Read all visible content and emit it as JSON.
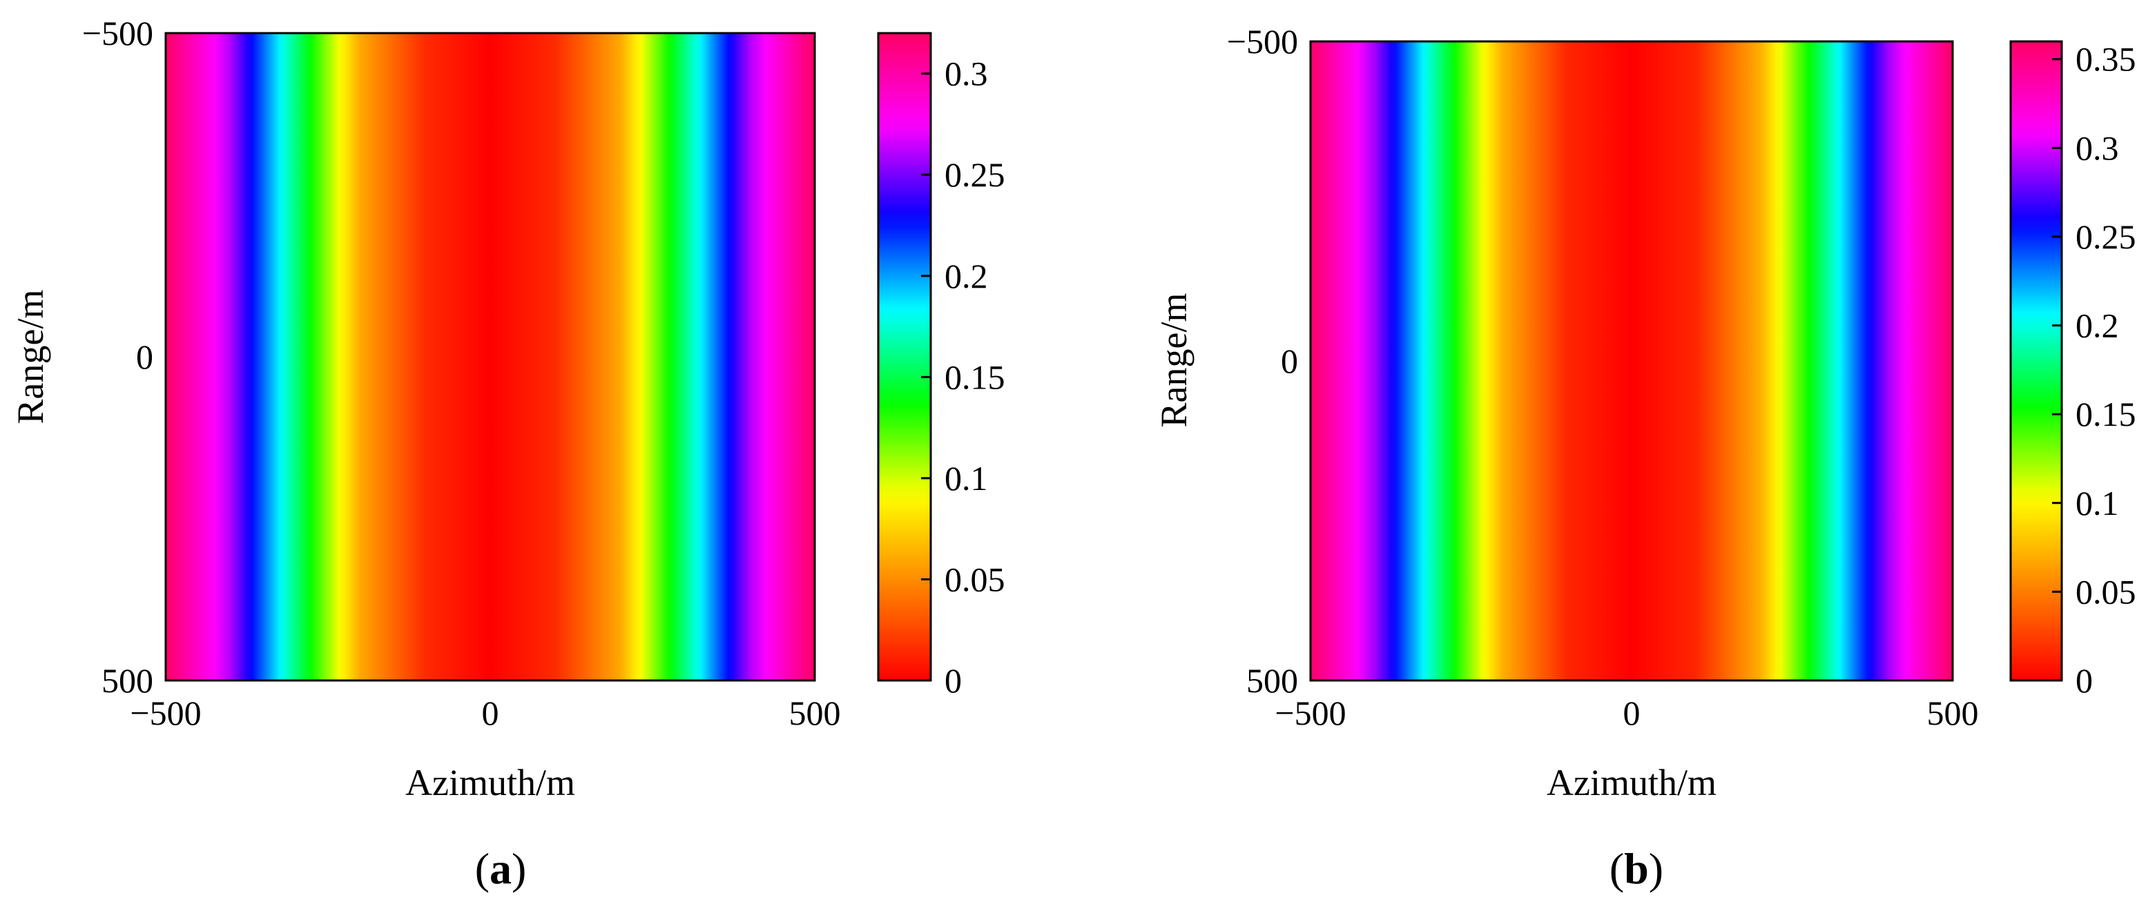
{
  "colors": {
    "colormap": [
      "#ff0000",
      "#ff8000",
      "#ffff00",
      "#00ff00",
      "#00ffff",
      "#0000ff",
      "#ff00ff",
      "#ff0066"
    ]
  },
  "chart_data": [
    {
      "panel": "a",
      "type": "heatmap",
      "subfigure_label": [
        "(",
        "a",
        ")"
      ],
      "xlabel": "Azimuth/m",
      "ylabel": "Range/m",
      "xlim": [
        -500,
        500
      ],
      "ylim": [
        -500,
        500
      ],
      "x_ticks": [
        "−500",
        "0",
        "500"
      ],
      "y_ticks": [
        "−500",
        "0",
        "500"
      ],
      "colorbar": {
        "range": [
          0,
          0.32
        ],
        "ticks": [
          "0",
          "0.05",
          "0.1",
          "0.15",
          "0.2",
          "0.25",
          "0.3"
        ],
        "colormap": "hsv-like (red → yellow → green → cyan → blue → magenta)"
      },
      "profile_note": "values vary with azimuth only; approximately constant along range",
      "profile_x": [
        -500,
        -400,
        -300,
        -200,
        -100,
        0,
        100,
        200,
        300,
        400,
        500
      ],
      "profile_values": [
        0.32,
        0.26,
        0.16,
        0.06,
        0.015,
        0,
        0.015,
        0.06,
        0.16,
        0.26,
        0.32
      ]
    },
    {
      "panel": "b",
      "type": "heatmap",
      "subfigure_label": [
        "(",
        "b",
        ")"
      ],
      "xlabel": "Azimuth/m",
      "ylabel": "Range/m",
      "xlim": [
        -500,
        500
      ],
      "ylim": [
        -500,
        500
      ],
      "x_ticks": [
        "−500",
        "0",
        "500"
      ],
      "y_ticks": [
        "−500",
        "0",
        "500"
      ],
      "colorbar": {
        "range": [
          0,
          0.36
        ],
        "ticks": [
          "0",
          "0.05",
          "0.1",
          "0.15",
          "0.2",
          "0.25",
          "0.3",
          "0.35"
        ],
        "colormap": "hsv-like (red → yellow → green → cyan → blue → magenta)"
      },
      "profile_note": "values vary with azimuth only; approximately constant along range",
      "profile_x": [
        -500,
        -400,
        -300,
        -200,
        -100,
        0,
        100,
        200,
        300,
        400,
        500
      ],
      "profile_values": [
        0.36,
        0.29,
        0.18,
        0.07,
        0.015,
        0,
        0.015,
        0.07,
        0.18,
        0.29,
        0.36
      ]
    }
  ]
}
